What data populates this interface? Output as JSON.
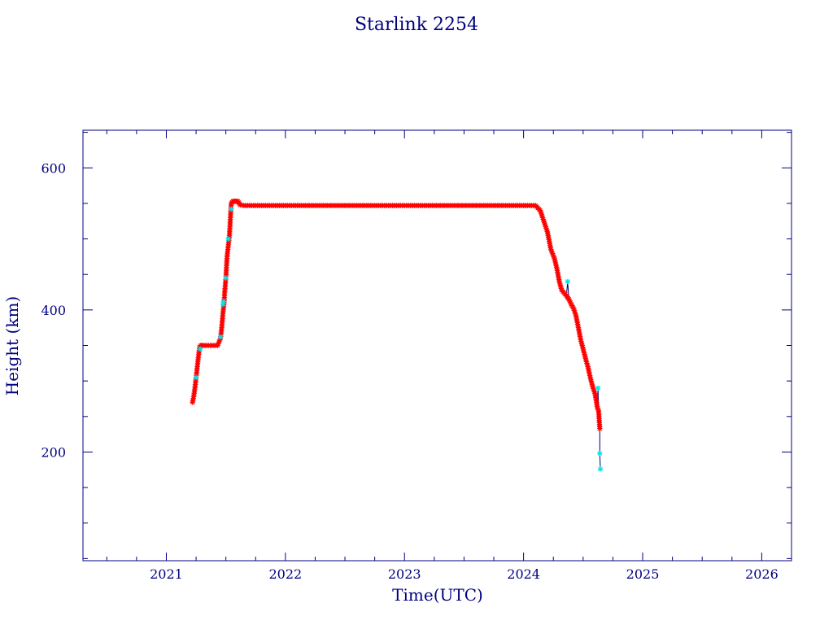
{
  "chart_data": {
    "type": "scatter",
    "title": "Starlink 2254",
    "xlabel": "Time(UTC)",
    "ylabel": "Height (km)",
    "xlim": [
      2020.3,
      2026.25
    ],
    "ylim": [
      47,
      653
    ],
    "x_ticks": [
      2021,
      2022,
      2023,
      2024,
      2025,
      2026
    ],
    "x_tick_labels": [
      "2021",
      "2022",
      "2023",
      "2024",
      "2025",
      "2026"
    ],
    "y_ticks": [
      200,
      400,
      600
    ],
    "y_tick_labels": [
      "200",
      "400",
      "600"
    ],
    "x_minor_step": 0.25,
    "y_minor_step": 50,
    "grid": false,
    "colors": {
      "axis": "#000080",
      "text": "#000080",
      "line": "#000080",
      "series_main": "#ff0000",
      "series_alt": "#00e5ee"
    },
    "series": [
      {
        "marker": "star",
        "color": "#ff0000",
        "x": [
          2021.22,
          2021.23,
          2021.24,
          2021.25,
          2021.26,
          2021.27,
          2021.28,
          2021.29,
          2021.31,
          2021.34,
          2021.37,
          2021.4,
          2021.43,
          2021.455,
          2021.465,
          2021.475,
          2021.485,
          2021.49,
          2021.5,
          2021.505,
          2021.51,
          2021.52,
          2021.53,
          2021.535,
          2021.54,
          2021.545,
          2021.56,
          2021.58,
          2021.6,
          2021.62,
          2021.65,
          2021.7,
          2021.8,
          2021.9,
          2022.0,
          2022.2,
          2022.4,
          2022.6,
          2022.8,
          2023.0,
          2023.2,
          2023.4,
          2023.6,
          2023.8,
          2024.0,
          2024.1,
          2024.14,
          2024.17,
          2024.2,
          2024.23,
          2024.26,
          2024.28,
          2024.3,
          2024.32,
          2024.34,
          2024.36,
          2024.38,
          2024.4,
          2024.42,
          2024.44,
          2024.46,
          2024.48,
          2024.5,
          2024.52,
          2024.54,
          2024.56,
          2024.58,
          2024.6,
          2024.61,
          2024.62,
          2024.63,
          2024.64
        ],
        "y": [
          270,
          278,
          290,
          305,
          320,
          335,
          348,
          350,
          350,
          350,
          350,
          350,
          350,
          360,
          375,
          395,
          410,
          425,
          445,
          460,
          475,
          490,
          505,
          520,
          535,
          550,
          553,
          553,
          553,
          548,
          547,
          547,
          547,
          547,
          547,
          547,
          547,
          547,
          547,
          547,
          547,
          547,
          547,
          547,
          547,
          547,
          540,
          525,
          510,
          485,
          472,
          458,
          440,
          428,
          424,
          420,
          415,
          408,
          402,
          392,
          375,
          358,
          345,
          332,
          320,
          305,
          292,
          282,
          272,
          262,
          258,
          233
        ]
      },
      {
        "marker": "star",
        "color": "#00e5ee",
        "x": [
          2021.25,
          2021.285,
          2021.455,
          2021.475,
          2021.48,
          2021.5,
          2021.52,
          2021.545,
          2024.37,
          2024.625,
          2024.64,
          2024.645
        ],
        "y": [
          305,
          345,
          362,
          408,
          412,
          445,
          500,
          542,
          440,
          290,
          198,
          176
        ]
      }
    ]
  }
}
